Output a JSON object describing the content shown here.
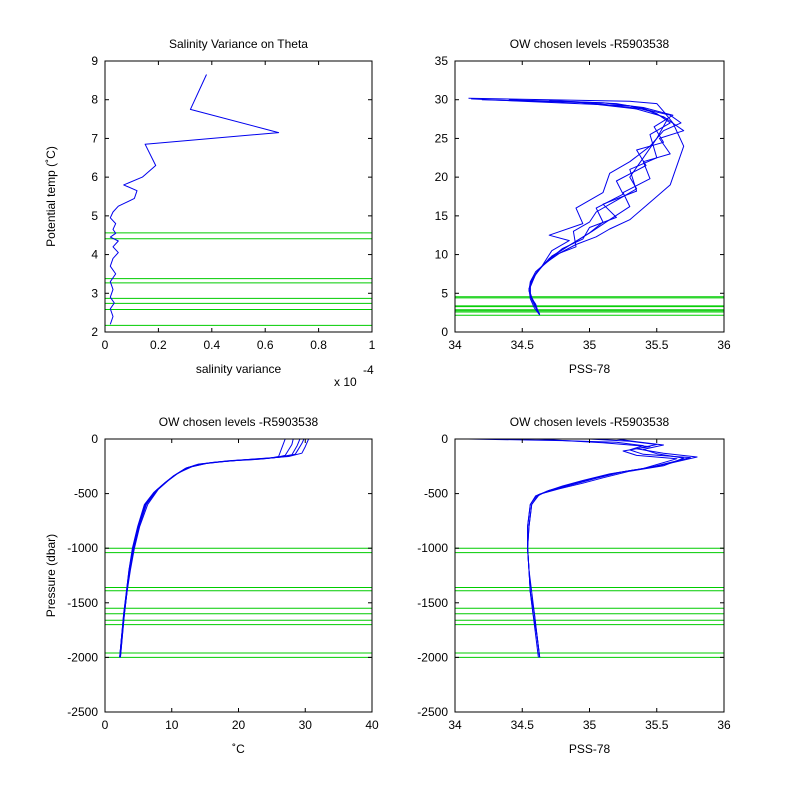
{
  "colors": {
    "series": "#0000ee",
    "levels": "#00cc00",
    "axes": "#000000"
  },
  "chart_data": [
    {
      "id": "p1",
      "type": "line",
      "title": "Salinity Variance on Theta",
      "xlabel": "salinity variance",
      "ylabel": "Potential temp (˚C)",
      "x_multiplier": "x 10",
      "x_multiplier_exp": "-4",
      "xlim": [
        0,
        1
      ],
      "ylim": [
        2,
        9
      ],
      "xticks": [
        0,
        0.2,
        0.4,
        0.6,
        0.8,
        1
      ],
      "xticklabels": [
        "0",
        "0.2",
        "0.4",
        "0.6",
        "0.8",
        "1"
      ],
      "yticks": [
        2,
        3,
        4,
        5,
        6,
        7,
        8,
        9
      ],
      "yticklabels": [
        "2",
        "3",
        "4",
        "5",
        "6",
        "7",
        "8",
        "9"
      ],
      "levels": [
        2.17,
        2.58,
        2.74,
        2.87,
        3.27,
        3.38,
        4.41,
        4.56
      ],
      "series": [
        {
          "x": [
            0.02,
            0.03,
            0.02,
            0.035,
            0.02,
            0.03,
            0.02,
            0.04,
            0.02,
            0.03,
            0.05,
            0.03,
            0.05,
            0.02,
            0.04,
            0.03,
            0.04,
            0.02,
            0.03,
            0.05,
            0.08,
            0.11,
            0.12,
            0.07,
            0.14,
            0.19,
            0.15,
            0.65,
            0.32,
            0.38
          ],
          "y": [
            2.2,
            2.4,
            2.6,
            2.75,
            2.9,
            3.1,
            3.3,
            3.5,
            3.7,
            3.9,
            4.05,
            4.2,
            4.35,
            4.45,
            4.55,
            4.65,
            4.8,
            4.95,
            5.1,
            5.25,
            5.35,
            5.45,
            5.65,
            5.8,
            6.0,
            6.3,
            6.85,
            7.15,
            7.75,
            8.65
          ]
        }
      ]
    },
    {
      "id": "p2",
      "type": "line",
      "title": "OW chosen levels -R5903538",
      "xlabel": "PSS-78",
      "ylabel": "",
      "xlim": [
        34,
        36
      ],
      "ylim": [
        0,
        35
      ],
      "xticks": [
        34,
        34.5,
        35,
        35.5,
        36
      ],
      "xticklabels": [
        "34",
        "34.5",
        "35",
        "35.5",
        "36"
      ],
      "yticks": [
        0,
        5,
        10,
        15,
        20,
        25,
        30,
        35
      ],
      "yticklabels": [
        "0",
        "5",
        "10",
        "15",
        "20",
        "25",
        "30",
        "35"
      ],
      "levels": [
        2.17,
        2.58,
        2.74,
        2.87,
        3.27,
        3.38,
        4.41,
        4.56
      ],
      "series": [
        {
          "x": [
            34.63,
            34.6,
            34.57,
            34.55,
            34.56,
            34.6,
            34.68,
            34.78,
            34.9,
            35.05,
            35.15,
            35.3,
            35.4,
            35.5,
            35.6,
            35.7,
            35.62,
            35.55,
            35.5,
            35.3,
            34.1
          ],
          "y": [
            2.2,
            3.2,
            4.2,
            5.3,
            6.5,
            7.8,
            9.0,
            10.2,
            11.3,
            12.3,
            13.3,
            14.5,
            16.0,
            17.5,
            19.0,
            24.0,
            27.0,
            28.5,
            29.5,
            29.8,
            30.2
          ]
        },
        {
          "x": [
            34.63,
            34.6,
            34.57,
            34.55,
            34.57,
            34.63,
            34.75,
            34.9,
            34.88,
            35.0,
            35.05,
            35.2,
            35.35,
            35.3,
            35.4,
            35.5,
            35.58,
            35.45,
            35.3,
            34.5,
            34.12
          ],
          "y": [
            2.2,
            3.4,
            4.5,
            5.5,
            6.8,
            8.2,
            10.0,
            11.0,
            13.0,
            14.2,
            15.5,
            17.0,
            18.5,
            20.0,
            22.5,
            25.0,
            27.5,
            28.5,
            29.2,
            29.8,
            30.1
          ]
        },
        {
          "x": [
            34.63,
            34.59,
            34.56,
            34.55,
            34.58,
            34.65,
            34.72,
            34.85,
            34.7,
            34.95,
            34.9,
            35.1,
            35.15,
            35.3,
            35.45,
            35.55,
            35.68,
            35.6,
            35.4,
            35.0,
            34.2
          ],
          "y": [
            2.2,
            3.1,
            4.3,
            5.6,
            7.0,
            8.6,
            10.5,
            11.8,
            12.5,
            14.0,
            16.0,
            18.0,
            20.5,
            22.0,
            24.0,
            26.0,
            27.0,
            28.0,
            28.8,
            29.6,
            30.0
          ]
        },
        {
          "x": [
            34.63,
            34.6,
            34.57,
            34.55,
            34.59,
            34.66,
            34.8,
            34.95,
            35.0,
            35.2,
            35.1,
            35.35,
            35.3,
            35.5,
            35.45,
            35.6,
            35.5,
            35.4,
            35.2,
            34.7
          ],
          "y": [
            2.3,
            3.3,
            4.4,
            5.5,
            7.2,
            8.8,
            10.8,
            12.0,
            13.5,
            14.8,
            16.5,
            18.2,
            21.0,
            22.5,
            25.5,
            27.0,
            28.2,
            28.9,
            29.5,
            29.9
          ]
        },
        {
          "x": [
            34.62,
            34.6,
            34.56,
            34.56,
            34.6,
            34.7,
            34.85,
            35.0,
            35.1,
            35.05,
            35.25,
            35.2,
            35.42,
            35.35,
            35.55,
            35.48,
            35.62,
            35.4,
            35.1,
            34.4
          ],
          "y": [
            2.4,
            3.6,
            4.6,
            5.8,
            7.5,
            9.5,
            11.2,
            12.8,
            14.2,
            16.0,
            17.8,
            19.5,
            21.5,
            23.5,
            24.5,
            26.5,
            28.0,
            29.0,
            29.6,
            30.0
          ]
        },
        {
          "x": [
            34.63,
            34.59,
            34.56,
            34.56,
            34.61,
            34.72,
            34.88,
            35.02,
            35.15,
            35.3,
            35.25,
            35.45,
            35.4,
            35.6,
            35.52,
            35.7,
            35.55,
            35.35,
            34.9
          ],
          "y": [
            2.2,
            3.5,
            4.7,
            6.0,
            7.8,
            9.8,
            11.5,
            13.0,
            14.5,
            16.2,
            18.0,
            19.8,
            22.0,
            23.0,
            25.0,
            26.0,
            27.8,
            28.8,
            29.7
          ]
        }
      ]
    },
    {
      "id": "p3",
      "type": "line",
      "title": "OW chosen levels -R5903538",
      "xlabel": "˚C",
      "ylabel": "Pressure (dbar)",
      "xlim": [
        0,
        40
      ],
      "ylim": [
        -2500,
        0
      ],
      "xticks": [
        0,
        10,
        20,
        30,
        40
      ],
      "xticklabels": [
        "0",
        "10",
        "20",
        "30",
        "40"
      ],
      "yticks": [
        0,
        -500,
        -1000,
        -1500,
        -2000,
        -2500
      ],
      "yticklabels": [
        "0",
        "-500",
        "-1000",
        "-1500",
        "-2000",
        "-2500"
      ],
      "levels": [
        -1000,
        -1040,
        -1360,
        -1390,
        -1550,
        -1600,
        -1660,
        -1700,
        -1960,
        -2000
      ],
      "series": [
        {
          "x": [
            2.2,
            2.5,
            2.8,
            3.2,
            3.6,
            4.2,
            5.0,
            6.0,
            7.5,
            9.0,
            10.5,
            12.0,
            14.0,
            17.0,
            20.0,
            23.0,
            25.5,
            27.0,
            27.5,
            28.0,
            28.2
          ],
          "y": [
            -2000,
            -1800,
            -1600,
            -1400,
            -1200,
            -1000,
            -800,
            -600,
            -480,
            -400,
            -330,
            -270,
            -230,
            -210,
            -195,
            -185,
            -170,
            -150,
            -100,
            -50,
            0
          ]
        },
        {
          "x": [
            2.2,
            2.5,
            2.9,
            3.3,
            3.7,
            4.3,
            5.1,
            6.2,
            7.8,
            9.2,
            10.8,
            12.5,
            15.0,
            18.0,
            21.0,
            24.0,
            26.5,
            28.5,
            29.0,
            29.5,
            29.8
          ],
          "y": [
            -2000,
            -1800,
            -1600,
            -1400,
            -1200,
            -1000,
            -800,
            -600,
            -470,
            -390,
            -320,
            -260,
            -225,
            -205,
            -190,
            -178,
            -165,
            -140,
            -90,
            -40,
            0
          ]
        },
        {
          "x": [
            2.3,
            2.6,
            2.9,
            3.3,
            3.8,
            4.4,
            5.2,
            6.4,
            8.0,
            9.5,
            11.0,
            13.0,
            15.5,
            18.5,
            22.0,
            25.0,
            27.5,
            29.5,
            30.0,
            30.5
          ],
          "y": [
            -2000,
            -1800,
            -1600,
            -1400,
            -1200,
            -1000,
            -800,
            -600,
            -460,
            -380,
            -310,
            -255,
            -220,
            -200,
            -185,
            -172,
            -160,
            -130,
            -70,
            0
          ]
        },
        {
          "x": [
            2.2,
            2.5,
            2.8,
            3.2,
            3.6,
            4.1,
            4.9,
            5.9,
            7.3,
            8.8,
            10.2,
            11.8,
            13.5,
            16.0,
            19.0,
            22.0,
            24.5,
            26.0,
            26.5,
            27.0
          ],
          "y": [
            -2000,
            -1800,
            -1600,
            -1400,
            -1200,
            -1000,
            -800,
            -600,
            -490,
            -410,
            -340,
            -280,
            -240,
            -215,
            -200,
            -190,
            -178,
            -160,
            -80,
            0
          ]
        },
        {
          "x": [
            2.3,
            2.6,
            2.9,
            3.3,
            3.7,
            4.3,
            5.1,
            6.1,
            7.6,
            9.1,
            10.6,
            12.2,
            14.5,
            17.5,
            20.5,
            23.5,
            26.0,
            28.0,
            28.8,
            29.2
          ],
          "y": [
            -2000,
            -1800,
            -1600,
            -1400,
            -1200,
            -1000,
            -800,
            -600,
            -475,
            -395,
            -325,
            -265,
            -228,
            -208,
            -192,
            -180,
            -168,
            -145,
            -60,
            0
          ]
        }
      ]
    },
    {
      "id": "p4",
      "type": "line",
      "title": "OW chosen levels -R5903538",
      "xlabel": "PSS-78",
      "ylabel": "",
      "xlim": [
        34,
        36
      ],
      "ylim": [
        -2500,
        0
      ],
      "xticks": [
        34,
        34.5,
        35,
        35.5,
        36
      ],
      "xticklabels": [
        "34",
        "34.5",
        "35",
        "35.5",
        "36"
      ],
      "yticks": [
        0,
        -500,
        -1000,
        -1500,
        -2000,
        -2500
      ],
      "yticklabels": [
        "0",
        "-500",
        "-1000",
        "-1500",
        "-2000",
        "-2500"
      ],
      "levels": [
        -1000,
        -1040,
        -1360,
        -1390,
        -1550,
        -1600,
        -1660,
        -1700,
        -1960,
        -2000
      ],
      "series": [
        {
          "x": [
            34.63,
            34.61,
            34.59,
            34.57,
            34.55,
            34.54,
            34.54,
            34.56,
            34.6,
            34.7,
            34.85,
            35.0,
            35.2,
            35.45,
            35.75,
            35.4,
            35.3,
            35.4,
            35.2,
            34.8,
            34.1
          ],
          "y": [
            -2000,
            -1800,
            -1600,
            -1400,
            -1200,
            -1000,
            -800,
            -600,
            -520,
            -470,
            -420,
            -370,
            -310,
            -260,
            -170,
            -140,
            -100,
            -60,
            -30,
            -15,
            0
          ]
        },
        {
          "x": [
            34.63,
            34.61,
            34.58,
            34.56,
            34.55,
            34.54,
            34.55,
            34.57,
            34.62,
            34.75,
            34.9,
            35.05,
            35.25,
            35.5,
            35.8,
            35.55,
            35.35,
            35.5,
            35.3,
            35.0
          ],
          "y": [
            -2000,
            -1800,
            -1600,
            -1400,
            -1200,
            -1000,
            -800,
            -600,
            -510,
            -460,
            -410,
            -360,
            -300,
            -250,
            -165,
            -130,
            -90,
            -50,
            -20,
            0
          ]
        },
        {
          "x": [
            34.62,
            34.6,
            34.58,
            34.56,
            34.55,
            34.54,
            34.54,
            34.56,
            34.6,
            34.68,
            34.8,
            34.95,
            35.15,
            35.4,
            35.65,
            35.35,
            35.25,
            35.45,
            35.1,
            34.6
          ],
          "y": [
            -2000,
            -1800,
            -1600,
            -1400,
            -1200,
            -1000,
            -800,
            -600,
            -530,
            -480,
            -430,
            -380,
            -320,
            -270,
            -180,
            -150,
            -110,
            -70,
            -35,
            0
          ]
        },
        {
          "x": [
            34.63,
            34.61,
            34.59,
            34.56,
            34.55,
            34.54,
            34.55,
            34.57,
            34.63,
            34.78,
            34.95,
            35.1,
            35.3,
            35.55,
            35.7,
            35.5,
            35.4,
            35.55,
            35.35,
            35.2
          ],
          "y": [
            -2000,
            -1800,
            -1600,
            -1400,
            -1200,
            -1000,
            -800,
            -600,
            -505,
            -455,
            -405,
            -355,
            -295,
            -245,
            -175,
            -135,
            -95,
            -55,
            -25,
            0
          ]
        }
      ]
    }
  ]
}
